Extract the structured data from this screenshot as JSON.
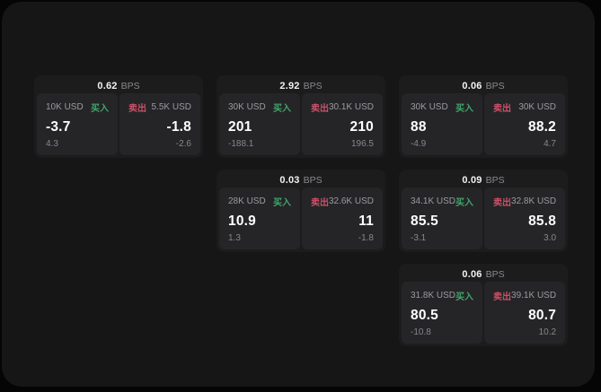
{
  "labels": {
    "bps_unit": "BPS",
    "buy": "买入",
    "sell": "卖出"
  },
  "colors": {
    "page_bg": "#050505",
    "panel_bg": "#161617",
    "card_bg": "#1c1c1d",
    "tile_bg": "#252528",
    "buy_green": "#42a469",
    "sell_red": "#cd5066"
  },
  "cards": [
    {
      "bps": "0.62",
      "row": 1,
      "col": 1,
      "buy": {
        "amount": "10K USD",
        "price": "-3.7",
        "delta": "4.3"
      },
      "sell": {
        "amount": "5.5K USD",
        "price": "-1.8",
        "delta": "-2.6"
      }
    },
    {
      "bps": "2.92",
      "row": 1,
      "col": 2,
      "buy": {
        "amount": "30K USD",
        "price": "201",
        "delta": "-188.1"
      },
      "sell": {
        "amount": "30.1K USD",
        "price": "210",
        "delta": "196.5"
      }
    },
    {
      "bps": "0.06",
      "row": 1,
      "col": 3,
      "buy": {
        "amount": "30K USD",
        "price": "88",
        "delta": "-4.9"
      },
      "sell": {
        "amount": "30K USD",
        "price": "88.2",
        "delta": "4.7"
      }
    },
    {
      "bps": "0.03",
      "row": 2,
      "col": 2,
      "buy": {
        "amount": "28K USD",
        "price": "10.9",
        "delta": "1.3"
      },
      "sell": {
        "amount": "32.6K USD",
        "price": "11",
        "delta": "-1.8"
      }
    },
    {
      "bps": "0.09",
      "row": 2,
      "col": 3,
      "buy": {
        "amount": "34.1K USD",
        "price": "85.5",
        "delta": "-3.1"
      },
      "sell": {
        "amount": "32.8K USD",
        "price": "85.8",
        "delta": "3.0"
      }
    },
    {
      "bps": "0.06",
      "row": 3,
      "col": 3,
      "buy": {
        "amount": "31.8K USD",
        "price": "80.5",
        "delta": "-10.8"
      },
      "sell": {
        "amount": "39.1K USD",
        "price": "80.7",
        "delta": "10.2"
      }
    }
  ]
}
